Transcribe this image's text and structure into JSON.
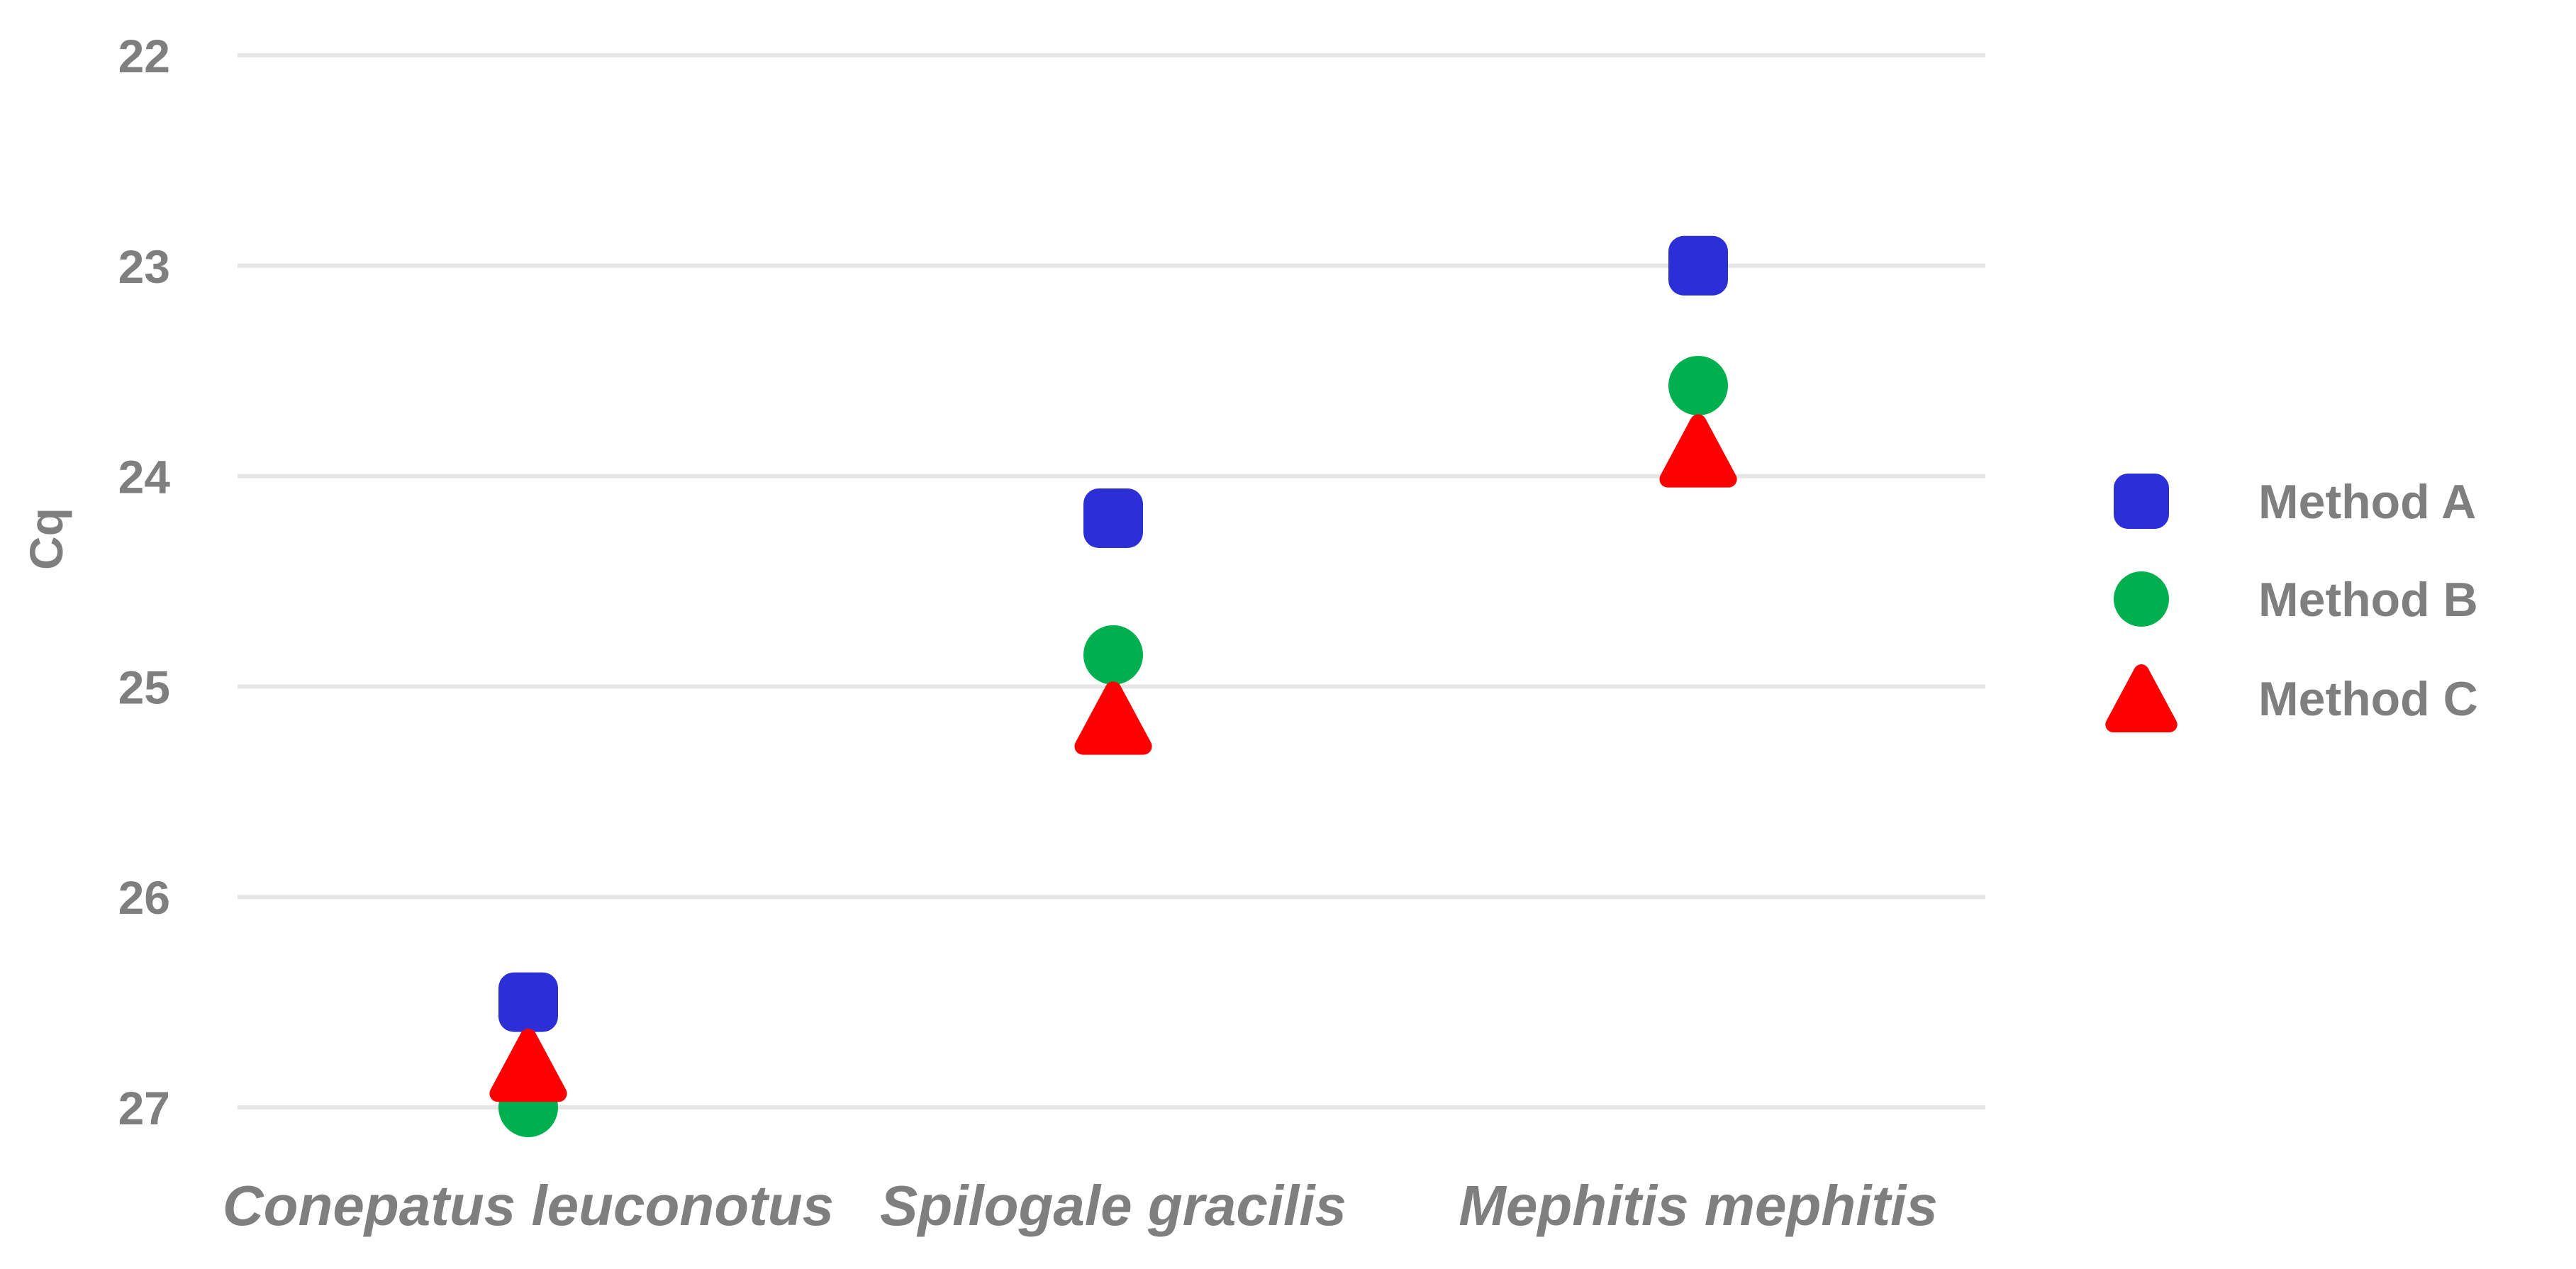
{
  "chart_data": {
    "type": "scatter",
    "title": "",
    "xlabel": "",
    "ylabel": "Cq",
    "categories": [
      "Conepatus leuconotus",
      "Spilogale gracilis",
      "Mephitis mephitis"
    ],
    "y_ticks": [
      "22",
      "23",
      "24",
      "25",
      "26",
      "27"
    ],
    "ylim": [
      22,
      27
    ],
    "y_reversed": true,
    "grid": true,
    "legend_position": "right",
    "series": [
      {
        "name": "Method A",
        "marker": "square",
        "color": "#2c2fd6",
        "values": [
          26.5,
          24.2,
          23.0
        ]
      },
      {
        "name": "Method B",
        "marker": "circle",
        "color": "#00b050",
        "values": [
          27.0,
          24.85,
          23.57
        ]
      },
      {
        "name": "Method C",
        "marker": "triangle",
        "color": "#ff0000",
        "values": [
          26.8,
          25.15,
          23.88
        ]
      }
    ]
  }
}
